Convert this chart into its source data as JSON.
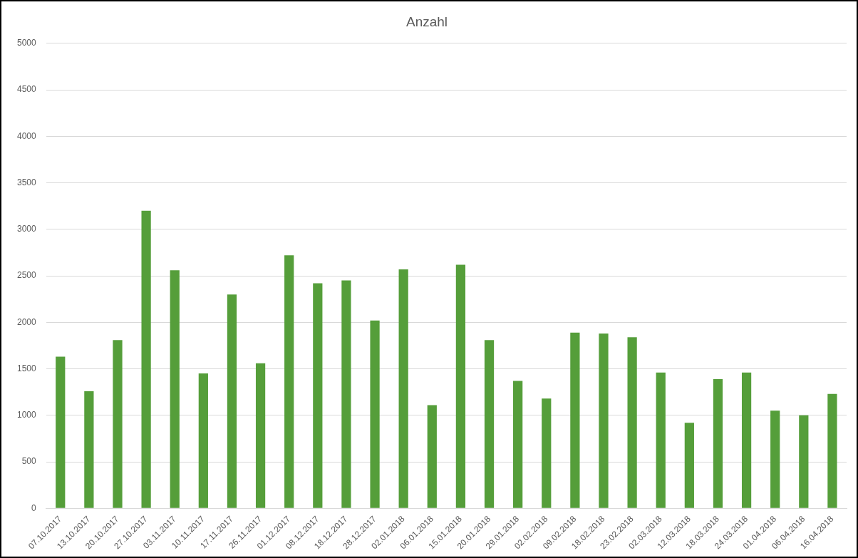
{
  "chart_data": {
    "type": "bar",
    "title": "Anzahl",
    "categories": [
      "07.10.2017",
      "13.10.2017",
      "20.10.2017",
      "27.10.2017",
      "03.11.2017",
      "10.11.2017",
      "17.11.2017",
      "26.11.2017",
      "01.12.2017",
      "08.12.2017",
      "18.12.2017",
      "28.12.2017",
      "02.01.2018",
      "06.01.2018",
      "15.01.2018",
      "20.01.2018",
      "29.01.2018",
      "02.02.2018",
      "09.02.2018",
      "18.02.2018",
      "23.02.2018",
      "02.03.2018",
      "12.03.2018",
      "18.03.2018",
      "24.03.2018",
      "01.04.2018",
      "06.04.2018",
      "16.04.2018"
    ],
    "values": [
      1630,
      1260,
      1810,
      3200,
      2560,
      1450,
      2300,
      1560,
      2720,
      2420,
      2450,
      2020,
      2570,
      1110,
      2620,
      1810,
      1370,
      1180,
      1890,
      1880,
      1840,
      1460,
      920,
      1390,
      1460,
      1050,
      1000,
      1230
    ],
    "color": "#559e3a",
    "ylim": [
      0,
      5000
    ],
    "yticks": [
      0,
      500,
      1000,
      1500,
      2000,
      2500,
      3000,
      3500,
      4000,
      4500,
      5000
    ],
    "grid": "y"
  }
}
